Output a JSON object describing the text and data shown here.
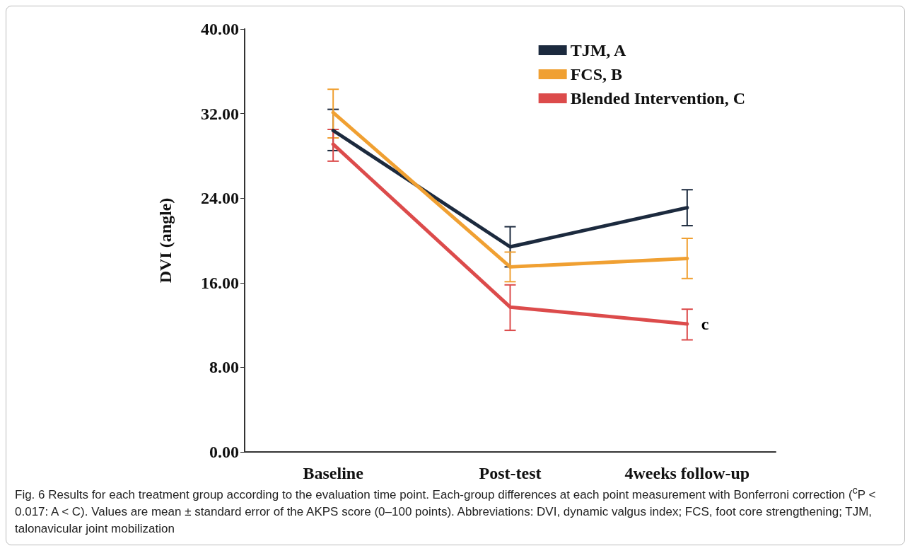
{
  "chart_data": {
    "type": "line",
    "ylabel": "DVI (angle)",
    "categories": [
      "Baseline",
      "Post-test",
      "4weeks follow-up"
    ],
    "ylim": [
      0,
      40
    ],
    "yticks": [
      {
        "value": 0,
        "label": "0.00"
      },
      {
        "value": 8,
        "label": "8.00"
      },
      {
        "value": 16,
        "label": "16.00"
      },
      {
        "value": 24,
        "label": "24.00"
      },
      {
        "value": 32,
        "label": "32.00"
      },
      {
        "value": 40,
        "label": "40.00"
      }
    ],
    "series": [
      {
        "name": "TJM, A",
        "color": "#1c2a3e",
        "values": [
          30.4,
          19.4,
          23.1
        ],
        "errors": [
          [
            28.5,
            32.4
          ],
          1.9,
          [
            21.4,
            24.8
          ]
        ]
      },
      {
        "name": "FCS, B",
        "color": "#f0a032",
        "values": [
          32.1,
          17.5,
          18.3
        ],
        "errors": [
          [
            29.7,
            34.3
          ],
          1.4,
          [
            16.4,
            20.2
          ]
        ]
      },
      {
        "name": "Blended Intervention, C",
        "color": "#dc4b4b",
        "values": [
          29.1,
          13.7,
          12.1
        ],
        "errors": [
          [
            27.5,
            30.5
          ],
          [
            11.5,
            15.8
          ],
          [
            10.6,
            13.5
          ]
        ]
      }
    ],
    "legend": "top right",
    "grid": false,
    "marker": "none",
    "line_style": "solid",
    "annotations": [
      {
        "text": "c",
        "x": "4weeks follow-up",
        "y": 12.1
      },
      "Fig. 6 Results for each treatment group according to the evaluation time point. Each-group differences at each point measurement with Bonferroni correction ($^{c}$P < 0.017: A < C). Values are mean ± standard error of the AKPS score (0–100 points). Abbreviations: DVI, dynamic valgus index; FCS, foot core strengthening; TJM, talonavicular joint mobilization"
    ]
  }
}
